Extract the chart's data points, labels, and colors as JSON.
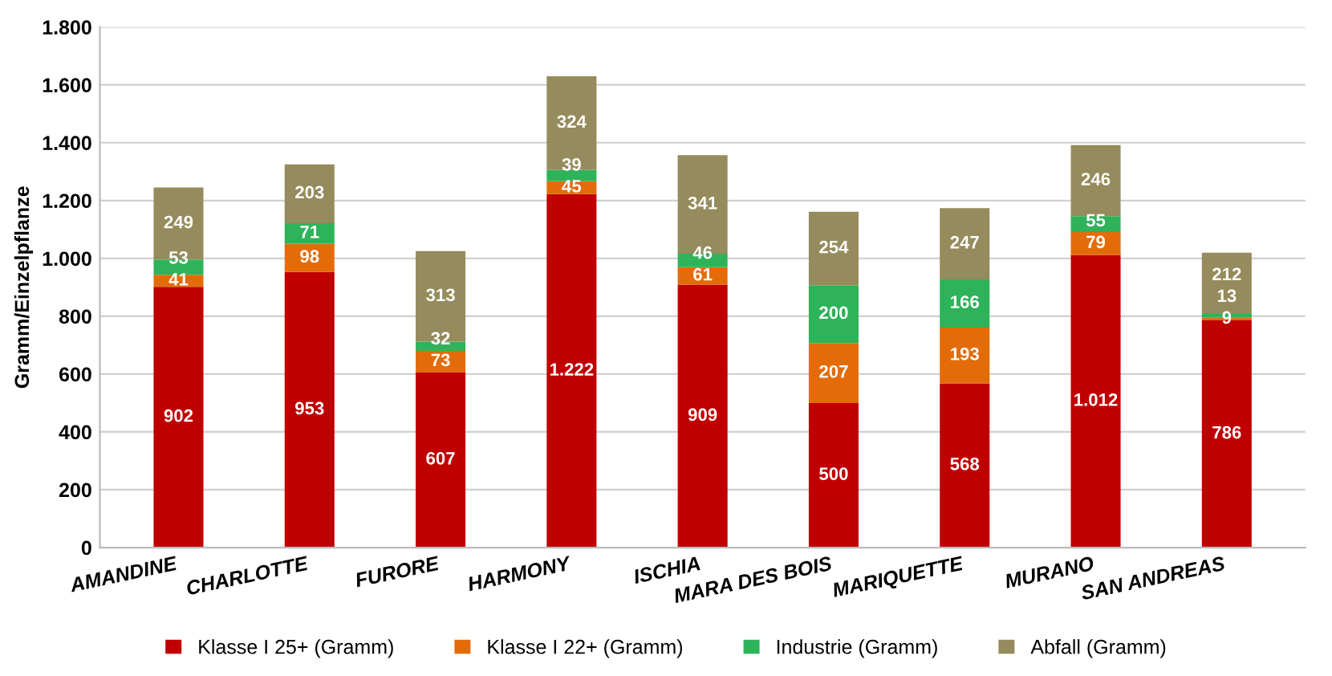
{
  "chart_data": {
    "type": "bar",
    "stacked": true,
    "ylabel": "Gramm/Einzelpflanze",
    "categories": [
      "AMANDINE",
      "CHARLOTTE",
      "FURORE",
      "HARMONY",
      "ISCHIA",
      "MARA DES BOIS",
      "MARIQUETTE",
      "MURANO",
      "SAN ANDREAS"
    ],
    "series": [
      {
        "name": "Klasse I 25+ (Gramm)",
        "color": "#c00000",
        "values": [
          902,
          953,
          607,
          1222,
          909,
          500,
          568,
          1012,
          786
        ],
        "value_labels": [
          "902",
          "953",
          "607",
          "1.222",
          "909",
          "500",
          "568",
          "1.012",
          "786"
        ]
      },
      {
        "name": "Klasse I 22+ (Gramm)",
        "color": "#e36c09",
        "values": [
          41,
          98,
          73,
          45,
          61,
          207,
          193,
          79,
          9
        ],
        "value_labels": [
          "41",
          "98",
          "73",
          "45",
          "61",
          "207",
          "193",
          "79",
          "9"
        ]
      },
      {
        "name": "Industrie (Gramm)",
        "color": "#2eb35a",
        "values": [
          53,
          71,
          32,
          39,
          46,
          200,
          166,
          55,
          13
        ],
        "value_labels": [
          "53",
          "71",
          "32",
          "39",
          "46",
          "200",
          "166",
          "55",
          "13"
        ]
      },
      {
        "name": "Abfall (Gramm)",
        "color": "#958b5c",
        "values": [
          249,
          203,
          313,
          324,
          341,
          254,
          247,
          246,
          212
        ],
        "value_labels": [
          "249",
          "203",
          "313",
          "324",
          "341",
          "254",
          "247",
          "246",
          "212"
        ]
      }
    ],
    "ylim": [
      0,
      1800
    ],
    "yticks": [
      0,
      200,
      400,
      600,
      800,
      {
        "value": 1000,
        "label": "1.000"
      },
      {
        "value": 1200,
        "label": "1.200"
      },
      {
        "value": 1400,
        "label": "1.400"
      },
      {
        "value": 1600,
        "label": "1.600"
      },
      {
        "value": 1800,
        "label": "1.800"
      }
    ],
    "grid": "y",
    "legend": "bottom"
  }
}
